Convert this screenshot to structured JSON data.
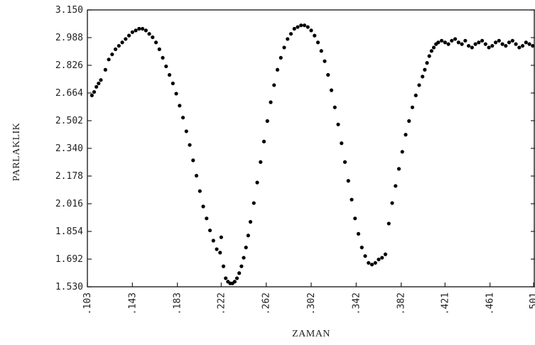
{
  "chart_data": {
    "type": "scatter",
    "title": "",
    "xlabel": "ZAMAN",
    "ylabel": "PARLAKLIK",
    "xlim": [
      0.103,
      0.501
    ],
    "ylim": [
      1.53,
      3.15
    ],
    "grid": false,
    "legend": "none",
    "colors": {
      "points": "#000000",
      "axes": "#222222",
      "background": "#ffffff"
    },
    "x_ticks": [
      {
        "value": 0.103,
        "label": ".103"
      },
      {
        "value": 0.143,
        "label": ".143"
      },
      {
        "value": 0.183,
        "label": ".183"
      },
      {
        "value": 0.222,
        "label": ".222"
      },
      {
        "value": 0.262,
        "label": ".262"
      },
      {
        "value": 0.302,
        "label": ".302"
      },
      {
        "value": 0.342,
        "label": ".342"
      },
      {
        "value": 0.382,
        "label": ".382"
      },
      {
        "value": 0.421,
        "label": ".421"
      },
      {
        "value": 0.461,
        "label": ".461"
      },
      {
        "value": 0.501,
        "label": ".501"
      }
    ],
    "y_ticks": [
      {
        "value": 3.15,
        "label": "3.150"
      },
      {
        "value": 2.988,
        "label": "2.988"
      },
      {
        "value": 2.826,
        "label": "2.826"
      },
      {
        "value": 2.664,
        "label": "2.664"
      },
      {
        "value": 2.502,
        "label": "2.502"
      },
      {
        "value": 2.34,
        "label": "2.340"
      },
      {
        "value": 2.178,
        "label": "2.178"
      },
      {
        "value": 2.016,
        "label": "2.016"
      },
      {
        "value": 1.854,
        "label": "1.854"
      },
      {
        "value": 1.692,
        "label": "1.692"
      },
      {
        "value": 1.53,
        "label": "1.530"
      }
    ],
    "series": [
      {
        "x": [
          0.107,
          0.109,
          0.111,
          0.113,
          0.115,
          0.119,
          0.122,
          0.125,
          0.128,
          0.131,
          0.134,
          0.137,
          0.14,
          0.143,
          0.146,
          0.149,
          0.152,
          0.155,
          0.158,
          0.161,
          0.164,
          0.167,
          0.17,
          0.173,
          0.176,
          0.179,
          0.182,
          0.185,
          0.188,
          0.191,
          0.194,
          0.197,
          0.2,
          0.203,
          0.206,
          0.209,
          0.212,
          0.215,
          0.218,
          0.221,
          0.222,
          0.224,
          0.226,
          0.228,
          0.23,
          0.232,
          0.234,
          0.236,
          0.238,
          0.24,
          0.242,
          0.244,
          0.246,
          0.248,
          0.251,
          0.254,
          0.257,
          0.26,
          0.263,
          0.266,
          0.269,
          0.272,
          0.275,
          0.278,
          0.281,
          0.284,
          0.287,
          0.29,
          0.293,
          0.296,
          0.299,
          0.302,
          0.305,
          0.308,
          0.311,
          0.314,
          0.317,
          0.32,
          0.323,
          0.326,
          0.329,
          0.332,
          0.335,
          0.338,
          0.341,
          0.344,
          0.347,
          0.35,
          0.353,
          0.356,
          0.359,
          0.362,
          0.365,
          0.368,
          0.371,
          0.374,
          0.377,
          0.38,
          0.383,
          0.386,
          0.389,
          0.392,
          0.395,
          0.398,
          0.401,
          0.403,
          0.405,
          0.407,
          0.409,
          0.411,
          0.413,
          0.415,
          0.418,
          0.421,
          0.424,
          0.427,
          0.43,
          0.433,
          0.436,
          0.439,
          0.442,
          0.445,
          0.448,
          0.451,
          0.454,
          0.457,
          0.46,
          0.463,
          0.466,
          0.469,
          0.472,
          0.475,
          0.478,
          0.481,
          0.484,
          0.487,
          0.49,
          0.493,
          0.496,
          0.499
        ],
        "y": [
          2.65,
          2.67,
          2.7,
          2.72,
          2.74,
          2.8,
          2.86,
          2.89,
          2.92,
          2.94,
          2.96,
          2.98,
          3.0,
          3.02,
          3.03,
          3.04,
          3.04,
          3.03,
          3.01,
          2.99,
          2.96,
          2.92,
          2.87,
          2.82,
          2.77,
          2.72,
          2.66,
          2.59,
          2.52,
          2.44,
          2.36,
          2.27,
          2.18,
          2.09,
          2.0,
          1.93,
          1.86,
          1.8,
          1.75,
          1.73,
          1.82,
          1.65,
          1.58,
          1.56,
          1.55,
          1.55,
          1.56,
          1.58,
          1.61,
          1.65,
          1.7,
          1.76,
          1.83,
          1.91,
          2.02,
          2.14,
          2.26,
          2.38,
          2.5,
          2.61,
          2.71,
          2.8,
          2.87,
          2.93,
          2.98,
          3.01,
          3.04,
          3.05,
          3.06,
          3.06,
          3.05,
          3.03,
          3.0,
          2.96,
          2.91,
          2.85,
          2.77,
          2.68,
          2.58,
          2.48,
          2.37,
          2.26,
          2.15,
          2.04,
          1.93,
          1.84,
          1.76,
          1.71,
          1.67,
          1.66,
          1.67,
          1.69,
          1.7,
          1.72,
          1.9,
          2.02,
          2.12,
          2.22,
          2.32,
          2.42,
          2.5,
          2.58,
          2.65,
          2.71,
          2.76,
          2.8,
          2.84,
          2.88,
          2.91,
          2.93,
          2.95,
          2.96,
          2.97,
          2.96,
          2.95,
          2.97,
          2.98,
          2.96,
          2.95,
          2.97,
          2.94,
          2.93,
          2.95,
          2.96,
          2.97,
          2.95,
          2.93,
          2.94,
          2.96,
          2.97,
          2.95,
          2.94,
          2.96,
          2.97,
          2.95,
          2.93,
          2.94,
          2.96,
          2.95,
          2.94
        ]
      }
    ]
  }
}
